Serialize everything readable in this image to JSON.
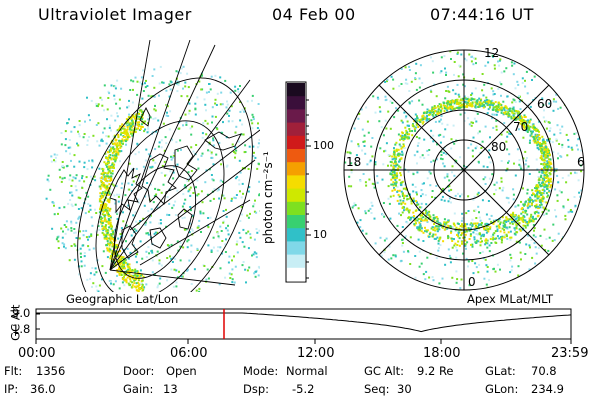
{
  "header": {
    "instrument": "Ultraviolet Imager",
    "date": "04 Feb 00",
    "time": "07:44:16 UT"
  },
  "colorbar": {
    "label": "photon cm⁻²s⁻¹",
    "scale": "log",
    "tick_labels": [
      "100",
      "10"
    ],
    "colors": [
      "#1a0a1f",
      "#3a0f3a",
      "#6a1a4a",
      "#a0203a",
      "#d01a1a",
      "#ee5a10",
      "#f5a000",
      "#f5dc00",
      "#cfe800",
      "#7ee020",
      "#38d070",
      "#30c0c8",
      "#80d8e8",
      "#c8eef5",
      "#ffffff"
    ]
  },
  "left_map": {
    "caption": "Geographic Lat/Lon"
  },
  "right_map": {
    "caption": "Apex  MLat/MLT",
    "clock_labels": {
      "top": "12",
      "left": "18",
      "right": "6",
      "bottom": "0"
    },
    "lat_labels": [
      "60",
      "70",
      "80"
    ]
  },
  "altitude_strip": {
    "axis_label": "GC Alt",
    "y_ticks": [
      "9.0",
      "1.8"
    ],
    "x_ticks": [
      "00:00",
      "06:00",
      "12:00",
      "18:00",
      "23:59"
    ],
    "current_time_marker": "07:44",
    "marker_color": "#e00000"
  },
  "footer": {
    "rows": [
      [
        {
          "key": "Flt:",
          "value": "1356"
        },
        {
          "key": "Door:",
          "value": "Open"
        },
        {
          "key": "Mode:",
          "value": "Normal"
        },
        {
          "key": "GC Alt:",
          "value": "9.2 Re"
        },
        {
          "key": "GLat:",
          "value": "70.8"
        }
      ],
      [
        {
          "key": "IP:",
          "value": "36.0"
        },
        {
          "key": "Gain:",
          "value": "13"
        },
        {
          "key": "Dsp:",
          "value": "-5.2"
        },
        {
          "key": "Seq:",
          "value": "30"
        },
        {
          "key": "GLon:",
          "value": "234.9"
        }
      ]
    ]
  }
}
